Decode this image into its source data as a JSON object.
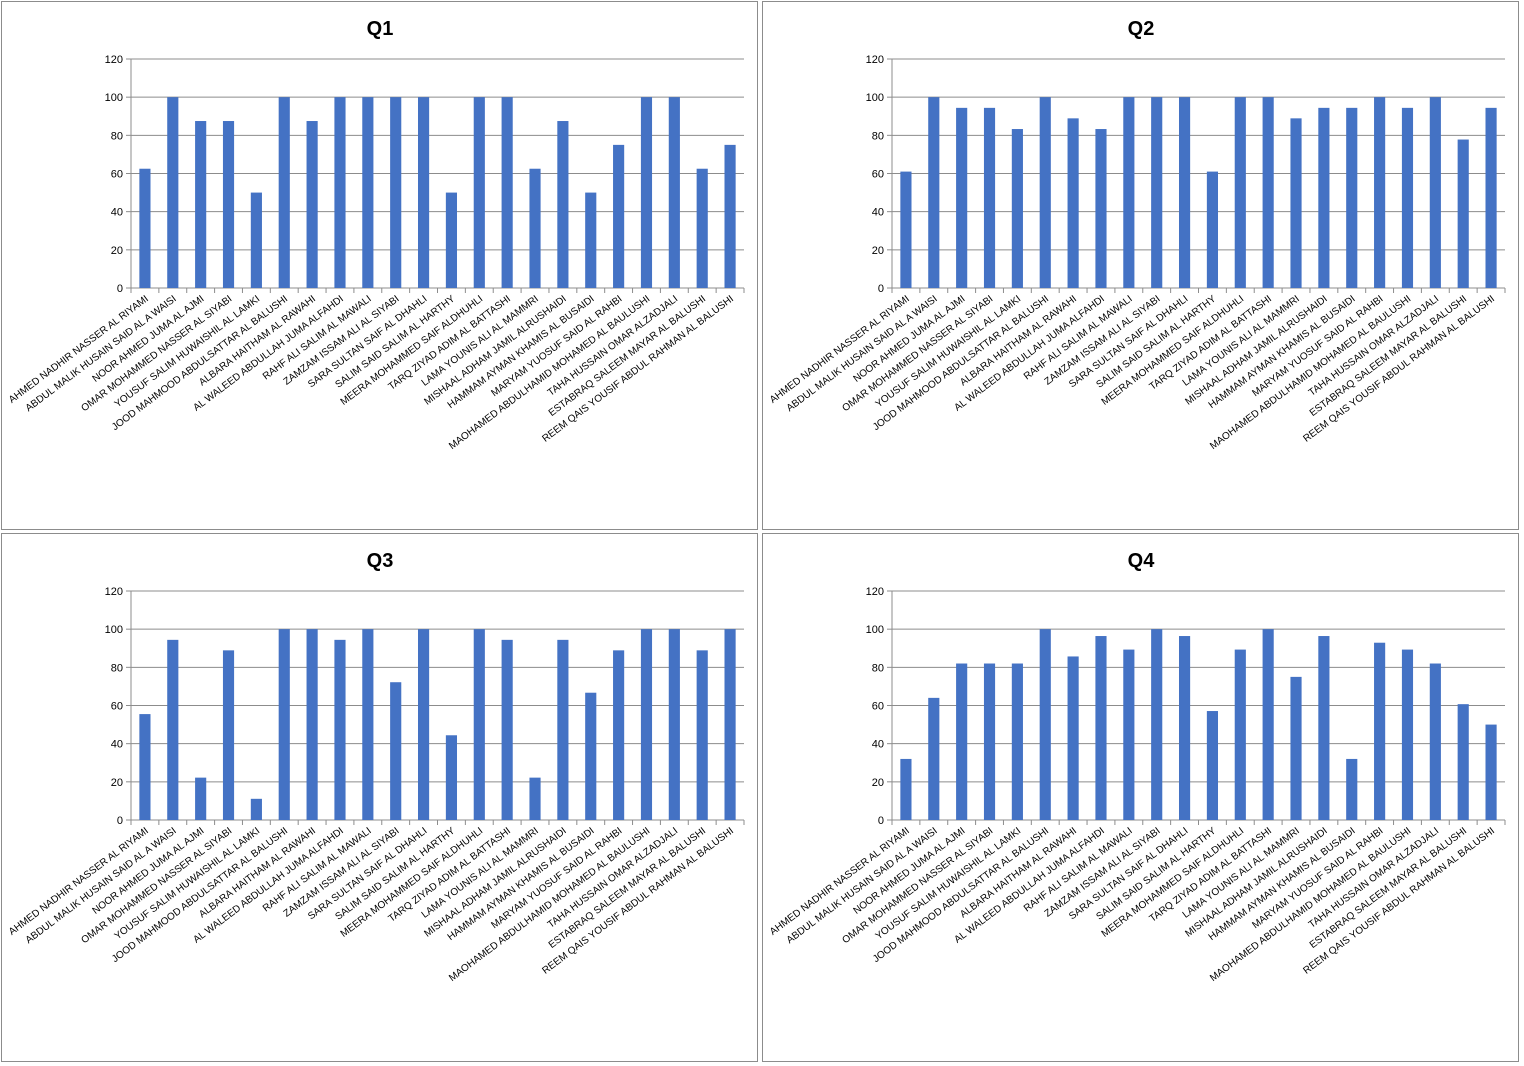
{
  "chart_data": [
    {
      "type": "bar",
      "title": "Q1",
      "ylim": [
        0,
        120
      ],
      "yticks": [
        0,
        20,
        40,
        60,
        80,
        100,
        120
      ],
      "grid": true,
      "legend": "none",
      "color": "#4472C4",
      "categories": [
        "AHMED NADHIR NASSER AL RIYAMI",
        "ABDUL MALIK HUSAIN SAID AL A WAISI",
        "NOOR AHMED JUMA AL AJMI",
        "OMAR MOHAMMED NASSER AL SIYABI",
        "YOUSUF SALIM HUWAISHIL AL LAMKI",
        "JOOD MAHMOOD ABDULSATTAR AL BALUSHI",
        "ALBARA HAITHAM AL RAWAHI",
        "AL WALEED ABDULLAH JUMA ALFAHDI",
        "RAHF ALI SALIM AL MAWALI",
        "ZAMZAM ISSAM ALI AL SIYABI",
        "SARA SULTAN SAIF AL DHAHLI",
        "SALIM SAID SALIM AL HARTHY",
        "MEERA MOHAMMED SAIF ALDHUHLI",
        "TARQ ZIYAD ADIM AL BATTASHI",
        "LAMA YOUNIS ALI AL MAMMRI",
        "MISHAAL ADHAM JAMIL ALRUSHAIDI",
        "HAMMAM AYMAN KHAMIS AL BUSAIDI",
        "MARYAM YUOSUF SAID AL RAHBI",
        "MAOHAMED ABDULHAMID MOHAMED AL BAULUSHI",
        "TAHA HUSSAIN OMAR ALZADJALI",
        "ESTABRAQ SALEEM MAYAR AL BALUSHI",
        "REEM QAIS YOUSIF ABDUL RAHMAN AL BALUSHI"
      ],
      "values": [
        62.5,
        100,
        87.5,
        87.5,
        50,
        100,
        87.5,
        100,
        100,
        100,
        100,
        50,
        100,
        100,
        62.5,
        87.5,
        50,
        75,
        100,
        100,
        62.5,
        75
      ]
    },
    {
      "type": "bar",
      "title": "Q2",
      "ylim": [
        0,
        120
      ],
      "yticks": [
        0,
        20,
        40,
        60,
        80,
        100,
        120
      ],
      "grid": true,
      "legend": "none",
      "color": "#4472C4",
      "categories": [
        "AHMED NADHIR NASSER AL RIYAMI",
        "ABDUL MALIK HUSAIN SAID AL A WAISI",
        "NOOR AHMED JUMA AL AJMI",
        "OMAR MOHAMMED NASSER AL SIYABI",
        "YOUSUF SALIM HUWAISHIL AL LAMKI",
        "JOOD MAHMOOD ABDULSATTAR AL BALUSHI",
        "ALBARA HAITHAM AL RAWAHI",
        "AL WALEED ABDULLAH JUMA ALFAHDI",
        "RAHF ALI SALIM AL MAWALI",
        "ZAMZAM ISSAM ALI AL SIYABI",
        "SARA SULTAN SAIF AL DHAHLI",
        "SALIM SAID SALIM AL HARTHY",
        "MEERA MOHAMMED SAIF ALDHUHLI",
        "TARQ ZIYAD ADIM AL BATTASHI",
        "LAMA YOUNIS ALI AL MAMMRI",
        "MISHAAL ADHAM JAMIL ALRUSHAIDI",
        "HAMMAM AYMAN KHAMIS AL BUSAIDI",
        "MARYAM YUOSUF SAID AL RAHBI",
        "MAOHAMED ABDULHAMID MOHAMED AL BAULUSHI",
        "TAHA HUSSAIN OMAR ALZADJALI",
        "ESTABRAQ SALEEM MAYAR AL BALUSHI",
        "REEM QAIS YOUSIF ABDUL RAHMAN AL BALUSHI"
      ],
      "values": [
        61,
        100,
        94.4,
        94.4,
        83.3,
        100,
        88.9,
        83.3,
        100,
        100,
        100,
        61,
        100,
        100,
        88.9,
        94.4,
        94.4,
        100,
        94.4,
        100,
        77.8,
        94.4
      ]
    },
    {
      "type": "bar",
      "title": "Q3",
      "ylim": [
        0,
        120
      ],
      "yticks": [
        0,
        20,
        40,
        60,
        80,
        100,
        120
      ],
      "grid": true,
      "legend": "none",
      "color": "#4472C4",
      "categories": [
        "AHMED NADHIR NASSER AL RIYAMI",
        "ABDUL MALIK HUSAIN SAID AL A WAISI",
        "NOOR AHMED JUMA AL AJMI",
        "OMAR MOHAMMED NASSER AL SIYABI",
        "YOUSUF SALIM HUWAISHIL AL LAMKI",
        "JOOD MAHMOOD ABDULSATTAR AL BALUSHI",
        "ALBARA HAITHAM AL RAWAHI",
        "AL WALEED ABDULLAH JUMA ALFAHDI",
        "RAHF ALI SALIM AL MAWALI",
        "ZAMZAM ISSAM ALI AL SIYABI",
        "SARA SULTAN SAIF AL DHAHLI",
        "SALIM SAID SALIM AL HARTHY",
        "MEERA MOHAMMED SAIF ALDHUHLI",
        "TARQ ZIYAD ADIM AL BATTASHI",
        "LAMA YOUNIS ALI AL MAMMRI",
        "MISHAAL ADHAM JAMIL ALRUSHAIDI",
        "HAMMAM AYMAN KHAMIS AL BUSAIDI",
        "MARYAM YUOSUF SAID AL RAHBI",
        "MAOHAMED ABDULHAMID MOHAMED AL BAULUSHI",
        "TAHA HUSSAIN OMAR ALZADJALI",
        "ESTABRAQ SALEEM MAYAR AL BALUSHI",
        "REEM QAIS YOUSIF ABDUL RAHMAN AL BALUSHI"
      ],
      "values": [
        55.5,
        94.4,
        22.2,
        88.9,
        11.1,
        100,
        100,
        94.4,
        100,
        72.2,
        100,
        44.4,
        100,
        94.4,
        22.2,
        94.4,
        66.7,
        88.9,
        100,
        100,
        88.9,
        100
      ]
    },
    {
      "type": "bar",
      "title": "Q4",
      "ylim": [
        0,
        120
      ],
      "yticks": [
        0,
        20,
        40,
        60,
        80,
        100,
        120
      ],
      "grid": true,
      "legend": "none",
      "color": "#4472C4",
      "categories": [
        "AHMED NADHIR NASSER AL RIYAMI",
        "ABDUL MALIK HUSAIN SAID AL A WAISI",
        "NOOR AHMED JUMA AL AJMI",
        "OMAR MOHAMMED NASSER AL SIYABI",
        "YOUSUF SALIM HUWAISHIL AL LAMKI",
        "JOOD MAHMOOD ABDULSATTAR AL BALUSHI",
        "ALBARA HAITHAM AL RAWAHI",
        "AL WALEED ABDULLAH JUMA ALFAHDI",
        "RAHF ALI SALIM AL MAWALI",
        "ZAMZAM ISSAM ALI AL SIYABI",
        "SARA SULTAN SAIF AL DHAHLI",
        "SALIM SAID SALIM AL HARTHY",
        "MEERA MOHAMMED SAIF ALDHUHLI",
        "TARQ ZIYAD ADIM AL BATTASHI",
        "LAMA YOUNIS ALI AL MAMMRI",
        "MISHAAL ADHAM JAMIL ALRUSHAIDI",
        "HAMMAM AYMAN KHAMIS AL BUSAIDI",
        "MARYAM YUOSUF SAID AL RAHBI",
        "MAOHAMED ABDULHAMID MOHAMED AL BAULUSHI",
        "TAHA HUSSAIN OMAR ALZADJALI",
        "ESTABRAQ SALEEM MAYAR AL BALUSHI",
        "REEM QAIS YOUSIF ABDUL RAHMAN AL BALUSHI"
      ],
      "values": [
        32,
        64,
        82,
        82,
        82,
        100,
        85.7,
        96.4,
        89.3,
        100,
        96.4,
        57.1,
        89.3,
        100,
        75,
        96.4,
        32,
        92.9,
        89.3,
        82,
        60.7,
        50
      ]
    }
  ]
}
